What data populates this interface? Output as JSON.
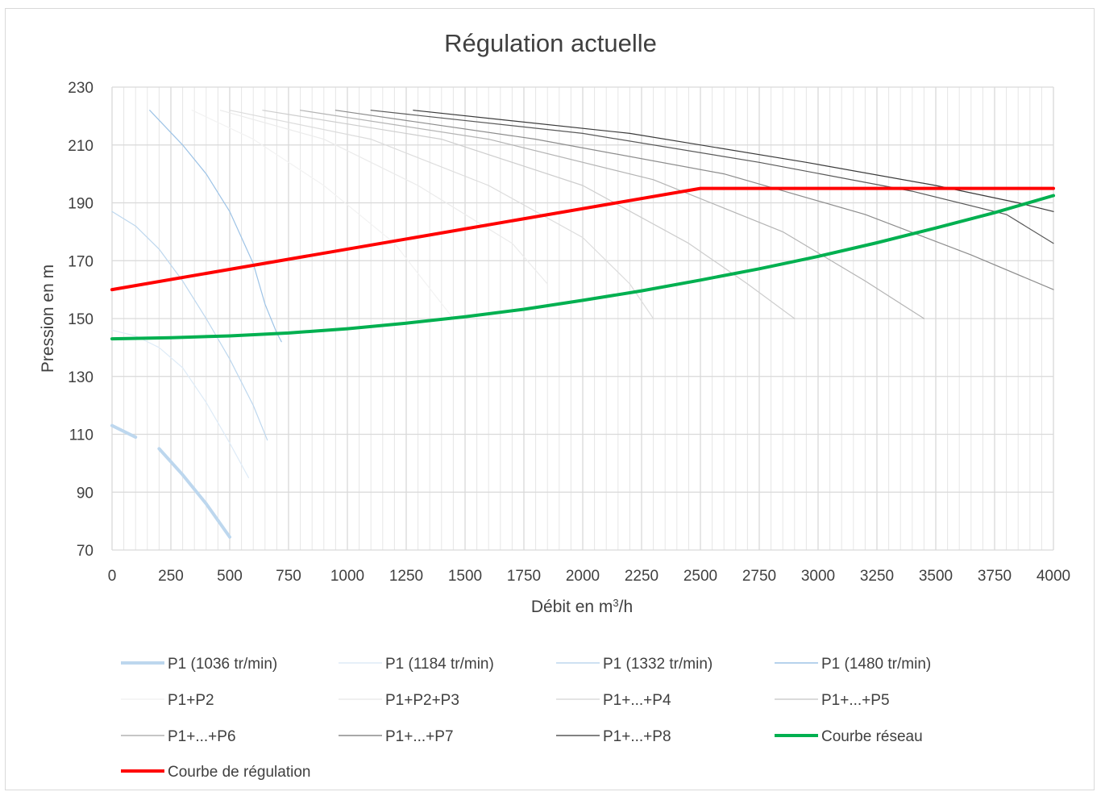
{
  "chart_data": {
    "type": "line",
    "title": "Régulation actuelle",
    "xlabel_prefix": "Débit en m",
    "xlabel_sup": "3",
    "xlabel_suffix": "/h",
    "ylabel": "Pression en m",
    "xlim": [
      0,
      4000
    ],
    "ylim": [
      70,
      230
    ],
    "xticks": [
      0,
      250,
      500,
      750,
      1000,
      1250,
      1500,
      1750,
      2000,
      2250,
      2500,
      2750,
      3000,
      3250,
      3500,
      3750,
      4000
    ],
    "yticks": [
      70,
      90,
      110,
      130,
      150,
      170,
      190,
      210,
      230
    ],
    "grid": true,
    "legend_position": "bottom",
    "series": [
      {
        "name": "P1 (1036 tr/min)",
        "color": "#bdd7ee",
        "width": 4,
        "points": [
          [
            0,
            113
          ],
          [
            100,
            109
          ]
        ]
      },
      {
        "name": "P1 (1036 tr/min)",
        "color": "#bdd7ee",
        "width": 4,
        "points": [
          [
            200,
            105
          ],
          [
            300,
            96
          ],
          [
            400,
            86
          ],
          [
            500,
            74.5
          ]
        ]
      },
      {
        "name": "P1 (1184 tr/min)",
        "color": "#deebf7",
        "width": 1.2,
        "points": [
          [
            0,
            146
          ],
          [
            100,
            144
          ],
          [
            200,
            140
          ],
          [
            300,
            133
          ],
          [
            400,
            121
          ],
          [
            500,
            107
          ],
          [
            580,
            95
          ]
        ]
      },
      {
        "name": "P1 (1332 tr/min)",
        "color": "#bdd7ee",
        "width": 1.2,
        "points": [
          [
            0,
            187
          ],
          [
            100,
            182
          ],
          [
            200,
            174
          ],
          [
            300,
            163
          ],
          [
            400,
            150
          ],
          [
            500,
            136
          ],
          [
            600,
            120
          ],
          [
            660,
            108
          ]
        ]
      },
      {
        "name": "P1 (1480 tr/min)",
        "color": "#9dc3e6",
        "width": 1.2,
        "points": [
          [
            160,
            222
          ],
          [
            300,
            210
          ],
          [
            400,
            200
          ],
          [
            500,
            187
          ],
          [
            600,
            169
          ],
          [
            650,
            155
          ],
          [
            700,
            145
          ],
          [
            720,
            142
          ]
        ]
      },
      {
        "name": "P1+P2",
        "color": "#f2f2f2",
        "width": 1.2,
        "points": [
          [
            340,
            222
          ],
          [
            600,
            212
          ],
          [
            900,
            196
          ],
          [
            1200,
            176
          ],
          [
            1450,
            150
          ]
        ]
      },
      {
        "name": "P1+P2+P3",
        "color": "#ebebeb",
        "width": 1.2,
        "points": [
          [
            460,
            222
          ],
          [
            900,
            212
          ],
          [
            1300,
            196
          ],
          [
            1700,
            176
          ],
          [
            1850,
            162
          ]
        ]
      },
      {
        "name": "P1+...+P4",
        "color": "#dcdcdc",
        "width": 1.2,
        "points": [
          [
            500,
            222
          ],
          [
            1100,
            212
          ],
          [
            1600,
            196
          ],
          [
            2000,
            178
          ],
          [
            2200,
            162
          ],
          [
            2300,
            150
          ]
        ]
      },
      {
        "name": "P1+...+P5",
        "color": "#cdcdcd",
        "width": 1.2,
        "points": [
          [
            640,
            222
          ],
          [
            1400,
            212
          ],
          [
            2000,
            196
          ],
          [
            2450,
            176
          ],
          [
            2700,
            162
          ],
          [
            2900,
            150
          ]
        ]
      },
      {
        "name": "P1+...+P6",
        "color": "#b4b4b4",
        "width": 1.2,
        "points": [
          [
            800,
            222
          ],
          [
            1600,
            212
          ],
          [
            2300,
            198
          ],
          [
            2850,
            180
          ],
          [
            3200,
            163
          ],
          [
            3450,
            150
          ]
        ]
      },
      {
        "name": "P1+...+P7",
        "color": "#8c8c8c",
        "width": 1.2,
        "points": [
          [
            950,
            222
          ],
          [
            1800,
            212
          ],
          [
            2600,
            200
          ],
          [
            3200,
            186
          ],
          [
            3650,
            172
          ],
          [
            4000,
            160
          ]
        ]
      },
      {
        "name": "P1+...+P8",
        "color": "#595959",
        "width": 1.2,
        "points": [
          [
            1100,
            222
          ],
          [
            2000,
            214
          ],
          [
            2750,
            204
          ],
          [
            3400,
            194
          ],
          [
            3800,
            186
          ],
          [
            4000,
            176
          ]
        ]
      },
      {
        "name": "P1+...+P8",
        "color": "#3a3a3a",
        "width": 1.2,
        "points": [
          [
            1280,
            222
          ],
          [
            2200,
            214
          ],
          [
            2950,
            204
          ],
          [
            3500,
            196
          ],
          [
            3850,
            190
          ],
          [
            4000,
            187
          ]
        ]
      },
      {
        "name": "Courbe réseau",
        "color": "#00b050",
        "width": 4,
        "points": [
          [
            0,
            143
          ],
          [
            250,
            143.4
          ],
          [
            500,
            144
          ],
          [
            750,
            145
          ],
          [
            1000,
            146.5
          ],
          [
            1250,
            148.4
          ],
          [
            1500,
            150.6
          ],
          [
            1750,
            153.2
          ],
          [
            2000,
            156.3
          ],
          [
            2250,
            159.6
          ],
          [
            2500,
            163.3
          ],
          [
            2750,
            167.2
          ],
          [
            3000,
            171.5
          ],
          [
            3250,
            176.2
          ],
          [
            3500,
            181.3
          ],
          [
            3750,
            186.6
          ],
          [
            4000,
            192.5
          ]
        ]
      },
      {
        "name": "Courbe de régulation",
        "color": "#ff0000",
        "width": 4,
        "points": [
          [
            0,
            160
          ],
          [
            2500,
            195
          ],
          [
            4000,
            195
          ]
        ]
      }
    ],
    "legend": [
      {
        "label": "P1 (1036 tr/min)",
        "color": "#bdd7ee",
        "width": 4
      },
      {
        "label": "P1 (1184 tr/min)",
        "color": "#deebf7",
        "width": 1.5
      },
      {
        "label": "P1 (1332 tr/min)",
        "color": "#bdd7ee",
        "width": 1.5
      },
      {
        "label": "P1 (1480 tr/min)",
        "color": "#9dc3e6",
        "width": 1.5
      },
      {
        "label": "P1+P2",
        "color": "#f2f2f2",
        "width": 1.5
      },
      {
        "label": "P1+P2+P3",
        "color": "#ebebeb",
        "width": 1.5
      },
      {
        "label": "P1+...+P4",
        "color": "#dcdcdc",
        "width": 1.5
      },
      {
        "label": "P1+...+P5",
        "color": "#cdcdcd",
        "width": 1.5
      },
      {
        "label": "P1+...+P6",
        "color": "#b4b4b4",
        "width": 1.5
      },
      {
        "label": "P1+...+P7",
        "color": "#8c8c8c",
        "width": 1.5
      },
      {
        "label": "P1+...+P8",
        "color": "#595959",
        "width": 1.5
      },
      {
        "label": "Courbe réseau",
        "color": "#00b050",
        "width": 4
      },
      {
        "label": "Courbe de régulation",
        "color": "#ff0000",
        "width": 4
      }
    ]
  }
}
